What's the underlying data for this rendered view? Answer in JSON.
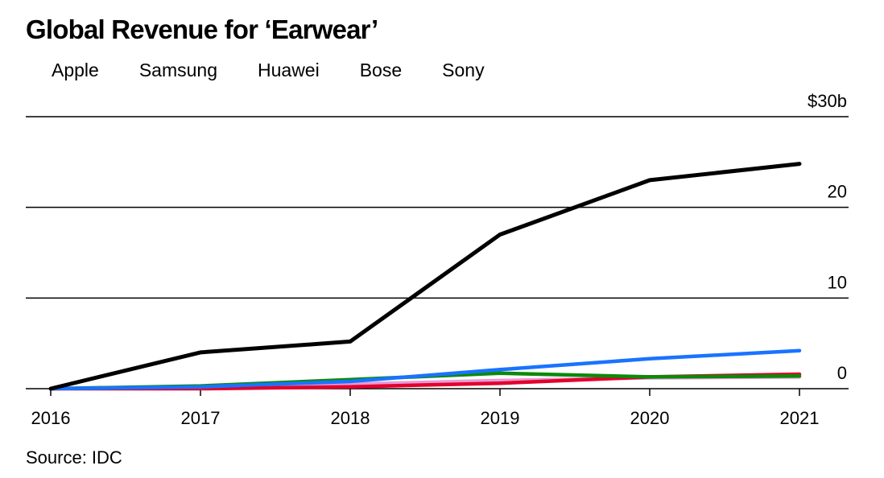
{
  "chart_data": {
    "type": "line",
    "title": "Global Revenue for ‘Earwear’",
    "categories": [
      "2016",
      "2017",
      "2018",
      "2019",
      "2020",
      "2021"
    ],
    "y_tick_labels": [
      "0",
      "10",
      "20",
      "$30b"
    ],
    "y_ticks": [
      0,
      10,
      20,
      30
    ],
    "ylim": [
      0,
      30
    ],
    "xlabel": "",
    "ylabel": "",
    "series": [
      {
        "name": "Apple",
        "color": "#000000",
        "values": [
          0,
          4.0,
          5.2,
          17.0,
          23.0,
          24.8
        ]
      },
      {
        "name": "Samsung",
        "color": "#1a73ff",
        "values": [
          0,
          0.2,
          0.8,
          2.1,
          3.3,
          4.2
        ]
      },
      {
        "name": "Huawei",
        "color": "#0a8a0a",
        "values": [
          0,
          0.3,
          1.0,
          1.7,
          1.3,
          1.4
        ]
      },
      {
        "name": "Bose",
        "color": "#e3002b",
        "values": [
          0,
          0.0,
          0.2,
          0.6,
          1.3,
          1.6
        ]
      },
      {
        "name": "Sony",
        "color": "#e79ad6",
        "values": [
          0,
          0.1,
          0.5,
          0.9,
          1.2,
          1.3
        ]
      }
    ],
    "source": "Source: IDC"
  }
}
